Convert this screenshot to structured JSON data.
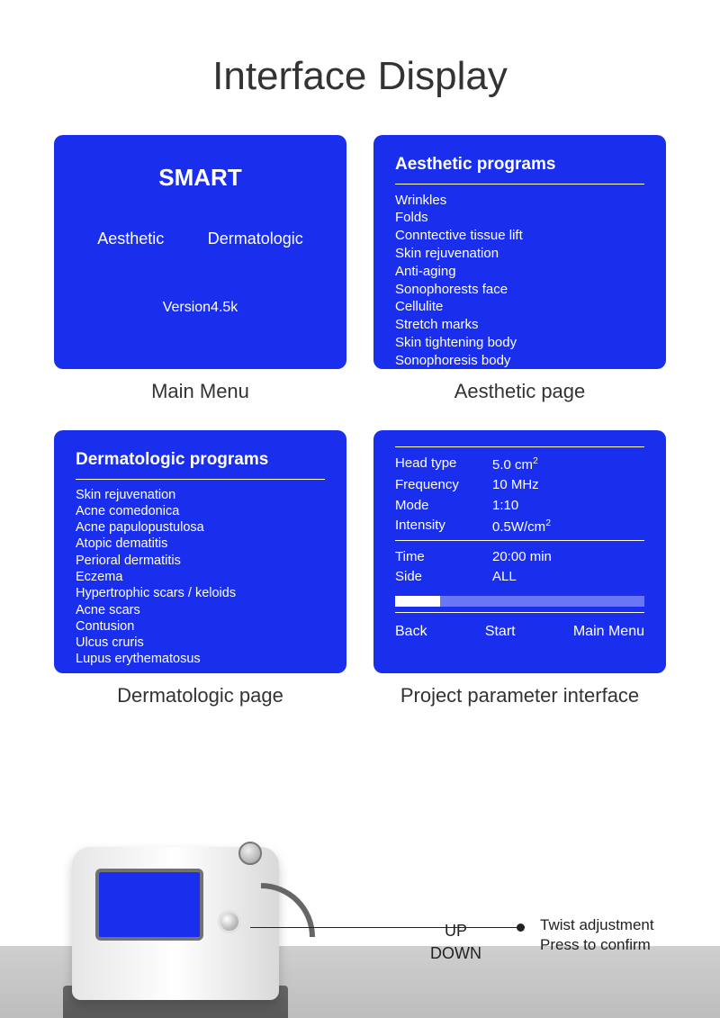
{
  "colors": {
    "panel_blue": "#1a2fee",
    "page_bg": "#ffffff",
    "text_dark": "#333333",
    "text_white": "#ffffff"
  },
  "title": "Interface Display",
  "panels": {
    "main_menu": {
      "caption": "Main Menu",
      "smart_label": "SMART",
      "option_a": "Aesthetic",
      "option_b": "Dermatologic",
      "version": "Version4.5k"
    },
    "aesthetic": {
      "caption": "Aesthetic page",
      "header": "Aesthetic programs",
      "items": [
        "Wrinkles",
        "Folds",
        "Conntective tissue lift",
        "Skin rejuvenation",
        "Anti-aging",
        "Sonophorests face",
        "Cellulite",
        "Stretch marks",
        "Skin tightening body",
        "Sonophoresis body"
      ]
    },
    "dermatologic": {
      "caption": "Dermatologic  page",
      "header": "Dermatologic programs",
      "items": [
        "Skin rejuvenation",
        "Acne comedonica",
        "Acne papulopustulosa",
        "Atopic dematitis",
        "Perioral dermatitis",
        "Eczema",
        "Hypertrophic scars / keloids",
        "Acne scars",
        "Contusion",
        "Ulcus cruris",
        "Lupus erythematosus"
      ]
    },
    "project_params": {
      "caption": "Project parameter interface",
      "rows1": [
        {
          "label": "Head type",
          "value": "5.0 cm²"
        },
        {
          "label": "Frequency",
          "value": "10  MHz"
        },
        {
          "label": "Mode",
          "value": "1:10"
        },
        {
          "label": "Intensity",
          "value": "0.5W/cm²"
        }
      ],
      "rows2": [
        {
          "label": "Time",
          "value": "20:00 min"
        },
        {
          "label": "Side",
          "value": "ALL"
        }
      ],
      "progress_percent": 18,
      "actions": {
        "back": "Back",
        "start": "Start",
        "main": "Main Menu"
      }
    }
  },
  "device_callout": {
    "up": "UP",
    "down": "DOWN",
    "line1": "Twist adjustment",
    "line2": "Press to confirm"
  }
}
